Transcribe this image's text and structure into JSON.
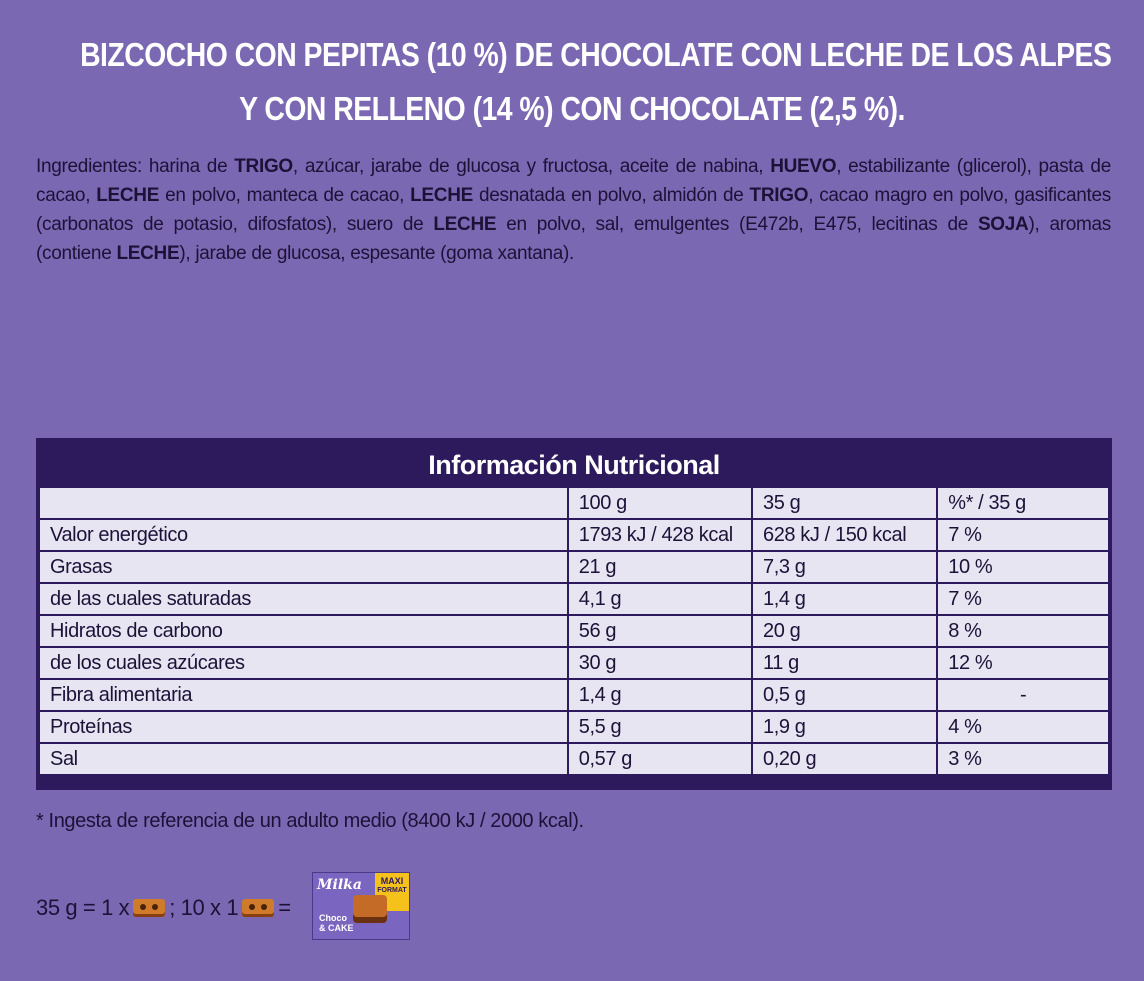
{
  "title": {
    "line1": "BIZCOCHO CON PEPITAS (10 %) DE CHOCOLATE CON LECHE DE LOS ALPES",
    "line2": "Y CON RELLENO (14 %) CON CHOCOLATE (2,5 %)."
  },
  "ingredients": {
    "prefix": "Ingredientes: harina de ",
    "a1": "TRIGO",
    "t1": ", azúcar, jarabe de glucosa y fructosa, aceite de nabina, ",
    "a2": "HUEVO",
    "t2": ", estabilizante (glicerol), pasta de cacao, ",
    "a3": "LECHE",
    "t3": " en polvo, manteca de cacao, ",
    "a4": "LECHE",
    "t4": " desnatada en polvo, almidón de ",
    "a5": "TRIGO",
    "t5": ", cacao magro en polvo, gasificantes (carbonatos de potasio, difosfatos), suero de ",
    "a6": "LECHE",
    "t6": " en polvo, sal, emulgentes (E472b, E475, lecitinas de ",
    "a7": "SOJA",
    "t7": "), aromas (contiene ",
    "a8": "LECHE",
    "t8": "), jarabe de glucosa, espesante (goma xantana)."
  },
  "nutrition": {
    "heading": "Información Nutricional",
    "columns": [
      "",
      "100 g",
      "35 g",
      "%* / 35 g"
    ],
    "rows": [
      [
        "Valor energético",
        "1793 kJ / 428 kcal",
        "628 kJ / 150 kcal",
        "7 %"
      ],
      [
        "Grasas",
        "21 g",
        "7,3 g",
        "10 %"
      ],
      [
        "de las cuales saturadas",
        "4,1 g",
        "1,4 g",
        "7 %"
      ],
      [
        "Hidratos de carbono",
        "56 g",
        "20 g",
        "8 %"
      ],
      [
        "de los cuales azúcares",
        "30 g",
        "11 g",
        "12 %"
      ],
      [
        "Fibra alimentaria",
        "1,4 g",
        "0,5 g",
        "-"
      ],
      [
        "Proteínas",
        "5,5 g",
        "1,9 g",
        "4 %"
      ],
      [
        "Sal",
        "0,57 g",
        "0,20 g",
        "3 %"
      ]
    ]
  },
  "footnote": "* Ingesta de referencia de un adulto medio (8400 kJ / 2000 kcal).",
  "portion": {
    "part1": "35 g = 1 x",
    "part2": "; 10 x 1",
    "part3": "="
  },
  "pack": {
    "logo": "Milka",
    "badge_top": "MAXI",
    "badge_sub": "FORMAT",
    "name_line1": "Choco",
    "name_line2": "& CAKE"
  },
  "colors": {
    "background": "#7b68b2",
    "table_header": "#2d1a5c",
    "table_cell": "#e8e5f2",
    "text_dark": "#1c1238"
  }
}
